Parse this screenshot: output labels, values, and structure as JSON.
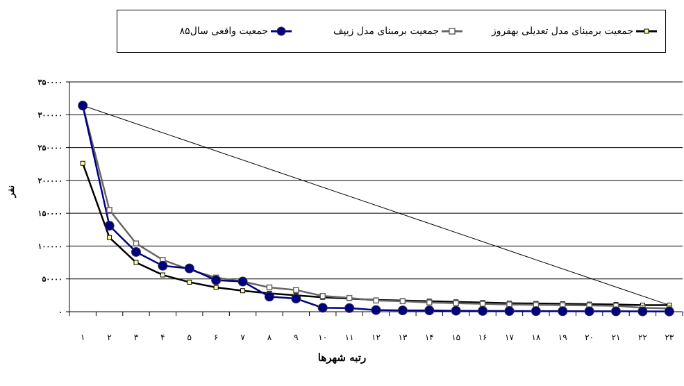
{
  "chart_data": {
    "type": "line",
    "title": "",
    "xlabel": "رتبه شهرها",
    "ylabel": "نفر",
    "ylim": [
      0,
      350000
    ],
    "y_ticks": [
      0,
      50000,
      100000,
      150000,
      200000,
      250000,
      300000,
      350000
    ],
    "y_tick_labels": [
      "۰",
      "۵۰۰۰۰",
      "۱۰۰۰۰۰",
      "۱۵۰۰۰۰",
      "۲۰۰۰۰۰",
      "۲۵۰۰۰۰",
      "۳۰۰۰۰۰",
      "۳۵۰۰۰۰"
    ],
    "categories": [
      "۱",
      "۲",
      "۳",
      "۴",
      "۵",
      "۶",
      "۷",
      "۸",
      "۹",
      "۱۰",
      "۱۱",
      "۱۲",
      "۱۳",
      "۱۴",
      "۱۵",
      "۱۶",
      "۱۷",
      "۱۸",
      "۱۹",
      "۲۰",
      "۲۱",
      "۲۲",
      "۲۳"
    ],
    "grid": true,
    "legend_position": "top",
    "series": [
      {
        "name": "جمعیت برمبنای مدل تعدیلی بهفروز",
        "color": "#000000",
        "marker": "cross",
        "values": [
          226000,
          113000,
          75000,
          56000,
          45000,
          37000,
          32000,
          28000,
          25000,
          22000,
          20000,
          18000,
          17000,
          16000,
          15000,
          14000,
          13000,
          12500,
          12000,
          11500,
          11000,
          10000,
          10000
        ]
      },
      {
        "name": "جمعیت برمبنای مدل زیپف",
        "color": "#666666",
        "marker": "square",
        "values": [
          314000,
          155000,
          104000,
          79000,
          64000,
          52000,
          46000,
          37000,
          33000,
          24000,
          21000,
          17000,
          16000,
          14000,
          13000,
          12000,
          11000,
          10500,
          10000,
          9500,
          9000,
          6000,
          5000
        ]
      },
      {
        "name": "جمعیت واقعی سال۸۵",
        "color": "#000080",
        "marker": "circle",
        "values": [
          314000,
          131000,
          91000,
          70000,
          66000,
          48000,
          46000,
          23000,
          20000,
          6000,
          5500,
          2500,
          2000,
          2000,
          1500,
          1200,
          1000,
          900,
          800,
          700,
          600,
          500,
          400
        ]
      }
    ],
    "annotations": [
      {
        "type": "trend_line",
        "from": {
          "x": "۱",
          "y": 314000
        },
        "to": {
          "x": "۲۳",
          "y": 10000
        },
        "color": "#000000"
      }
    ]
  }
}
